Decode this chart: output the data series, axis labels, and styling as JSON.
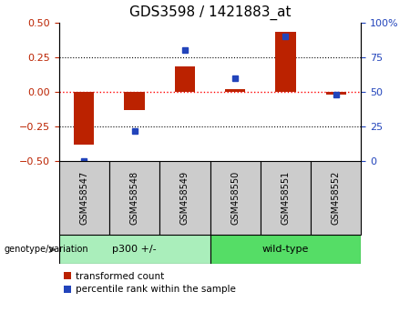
{
  "title": "GDS3598 / 1421883_at",
  "samples": [
    "GSM458547",
    "GSM458548",
    "GSM458549",
    "GSM458550",
    "GSM458551",
    "GSM458552"
  ],
  "red_bars": [
    -0.38,
    -0.13,
    0.18,
    0.02,
    0.43,
    -0.02
  ],
  "blue_dots": [
    0.0,
    22.0,
    80.0,
    60.0,
    90.0,
    48.0
  ],
  "red_color": "#bb2200",
  "blue_color": "#2244bb",
  "groups": [
    {
      "label": "p300 +/-",
      "indices": [
        0,
        1,
        2
      ],
      "color": "#aaeebb"
    },
    {
      "label": "wild-type",
      "indices": [
        3,
        4,
        5
      ],
      "color": "#55dd66"
    }
  ],
  "ylim_left": [
    -0.5,
    0.5
  ],
  "ylim_right": [
    0,
    100
  ],
  "yticks_left": [
    -0.5,
    -0.25,
    0.0,
    0.25,
    0.5
  ],
  "yticks_right": [
    0,
    25,
    50,
    75,
    100
  ],
  "hlines": [
    -0.25,
    0.0,
    0.25
  ],
  "hline_colors": [
    "black",
    "red",
    "black"
  ],
  "hline_styles": [
    "dotted",
    "dotted",
    "dotted"
  ],
  "background_color": "#ffffff",
  "plot_bg": "#ffffff",
  "sample_box_bg": "#cccccc",
  "genotype_label": "genotype/variation",
  "legend_red": "transformed count",
  "legend_blue": "percentile rank within the sample",
  "bar_width": 0.4
}
